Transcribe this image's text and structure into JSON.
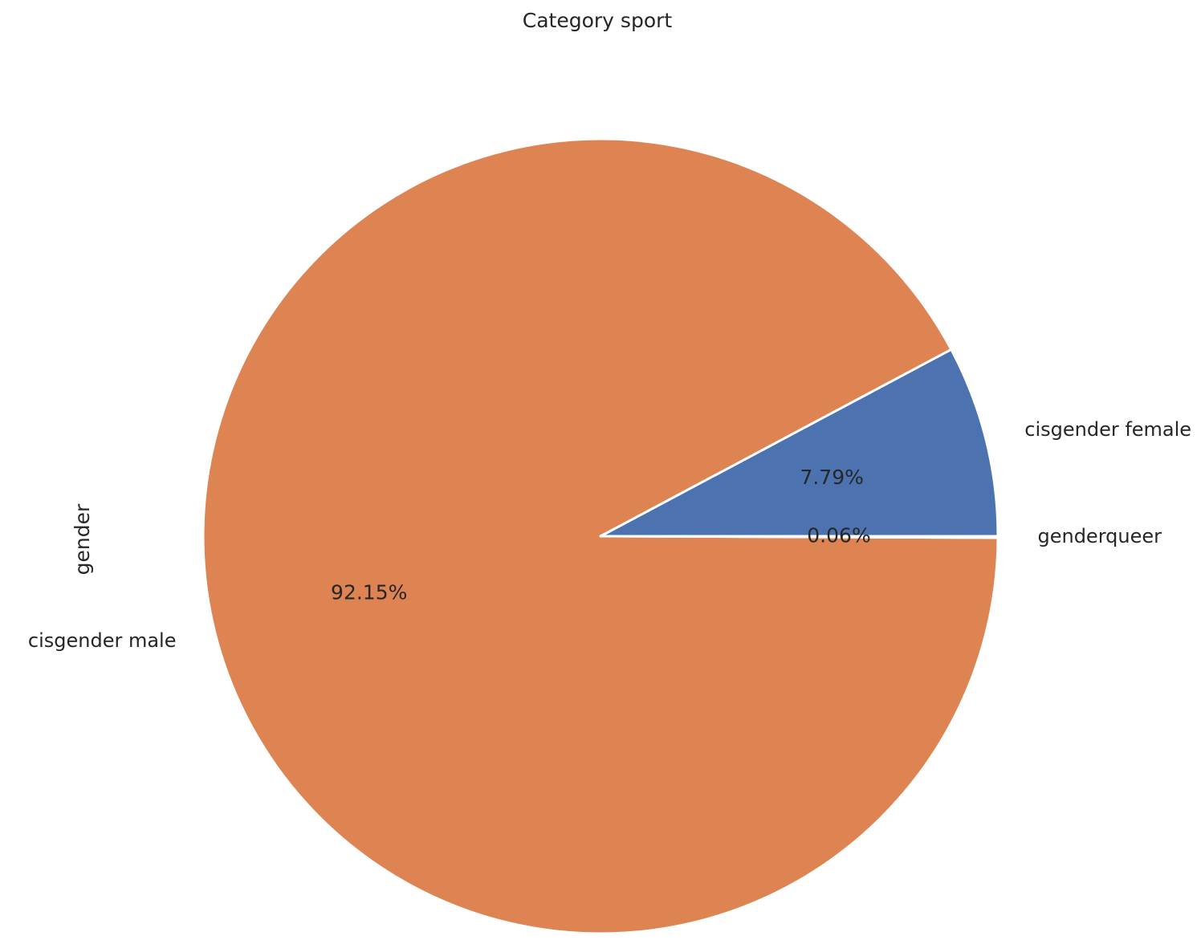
{
  "chart_data": {
    "type": "pie",
    "title": "Category sport",
    "ylabel": "gender",
    "xlabel": "",
    "start_angle_deg": 0,
    "direction": "counterclockwise",
    "slices": [
      {
        "label": "cisgender female",
        "value": 7.79,
        "pct_label": "7.79%",
        "color": "#4c72b0"
      },
      {
        "label": "cisgender male",
        "value": 92.15,
        "pct_label": "92.15%",
        "color": "#dd8452"
      },
      {
        "label": "genderqueer",
        "value": 0.06,
        "pct_label": "0.06%",
        "color": "#55a868"
      }
    ],
    "wedge_edge_color": "#ffffff"
  }
}
